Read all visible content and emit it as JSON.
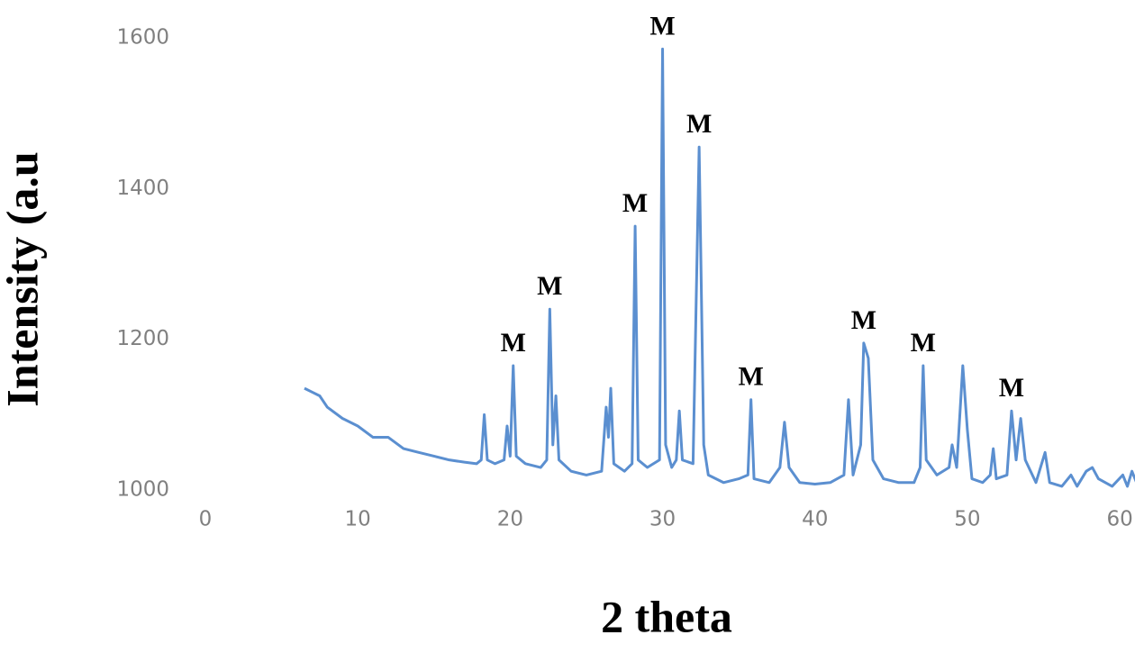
{
  "chart_data": {
    "type": "line",
    "x_label": "2 theta",
    "y_label": "Intensity (a.u",
    "color": "#5b8fd0",
    "xlim": [
      0,
      61
    ],
    "xticks": [
      0,
      10,
      20,
      30,
      40,
      50,
      60
    ],
    "ylim": [
      950,
      1650
    ],
    "yticks": [
      1000,
      1200,
      1400,
      1600
    ],
    "grid": false,
    "x": [
      6.5,
      7.0,
      7.5,
      8,
      9,
      10,
      11,
      12,
      13,
      14,
      15,
      16,
      17,
      17.8,
      18.1,
      18.3,
      18.5,
      19.0,
      19.6,
      19.8,
      20.0,
      20.2,
      20.4,
      21,
      22,
      22.4,
      22.6,
      22.8,
      23.0,
      23.2,
      24,
      25,
      26,
      26.3,
      26.45,
      26.6,
      26.8,
      27.5,
      28.0,
      28.2,
      28.4,
      29,
      29.8,
      30.0,
      30.2,
      30.6,
      30.9,
      31.1,
      31.3,
      32.0,
      32.4,
      32.7,
      33,
      34,
      35,
      35.6,
      35.8,
      36.0,
      37,
      37.7,
      38.0,
      38.3,
      39,
      40,
      41,
      41.9,
      42.2,
      42.5,
      43.0,
      43.2,
      43.5,
      43.8,
      44.5,
      45.5,
      46.5,
      46.9,
      47.1,
      47.3,
      48,
      48.8,
      49.0,
      49.3,
      49.7,
      50.0,
      50.3,
      51,
      51.5,
      51.7,
      51.9,
      52.6,
      52.9,
      53.2,
      53.5,
      53.8,
      54.5,
      55.1,
      55.4,
      56.2,
      56.8,
      57.2,
      57.8,
      58.2,
      58.6,
      59.5,
      60.2,
      60.5,
      60.8,
      61.2
    ],
    "values": [
      1135,
      1130,
      1125,
      1110,
      1095,
      1085,
      1070,
      1070,
      1055,
      1050,
      1045,
      1040,
      1037,
      1035,
      1040,
      1100,
      1040,
      1035,
      1040,
      1085,
      1045,
      1165,
      1045,
      1035,
      1030,
      1040,
      1240,
      1060,
      1125,
      1040,
      1025,
      1020,
      1025,
      1110,
      1070,
      1135,
      1035,
      1025,
      1035,
      1350,
      1040,
      1030,
      1040,
      1585,
      1060,
      1030,
      1040,
      1105,
      1040,
      1035,
      1455,
      1060,
      1020,
      1010,
      1015,
      1020,
      1120,
      1015,
      1010,
      1030,
      1090,
      1030,
      1010,
      1008,
      1010,
      1020,
      1120,
      1020,
      1060,
      1195,
      1175,
      1040,
      1015,
      1010,
      1010,
      1030,
      1165,
      1040,
      1020,
      1030,
      1060,
      1030,
      1165,
      1080,
      1015,
      1010,
      1020,
      1055,
      1015,
      1020,
      1105,
      1040,
      1095,
      1040,
      1010,
      1050,
      1010,
      1005,
      1020,
      1005,
      1025,
      1030,
      1015,
      1005,
      1020,
      1005,
      1025,
      1005
    ],
    "annotations": [
      {
        "text": "M",
        "x": 20.2,
        "y": 1165
      },
      {
        "text": "M",
        "x": 22.6,
        "y": 1240
      },
      {
        "text": "M",
        "x": 28.2,
        "y": 1350
      },
      {
        "text": "M",
        "x": 30.0,
        "y": 1585
      },
      {
        "text": "M",
        "x": 32.4,
        "y": 1455
      },
      {
        "text": "M",
        "x": 35.8,
        "y": 1120
      },
      {
        "text": "M",
        "x": 43.2,
        "y": 1195
      },
      {
        "text": "M",
        "x": 47.1,
        "y": 1165
      },
      {
        "text": "M",
        "x": 52.9,
        "y": 1105
      }
    ]
  }
}
